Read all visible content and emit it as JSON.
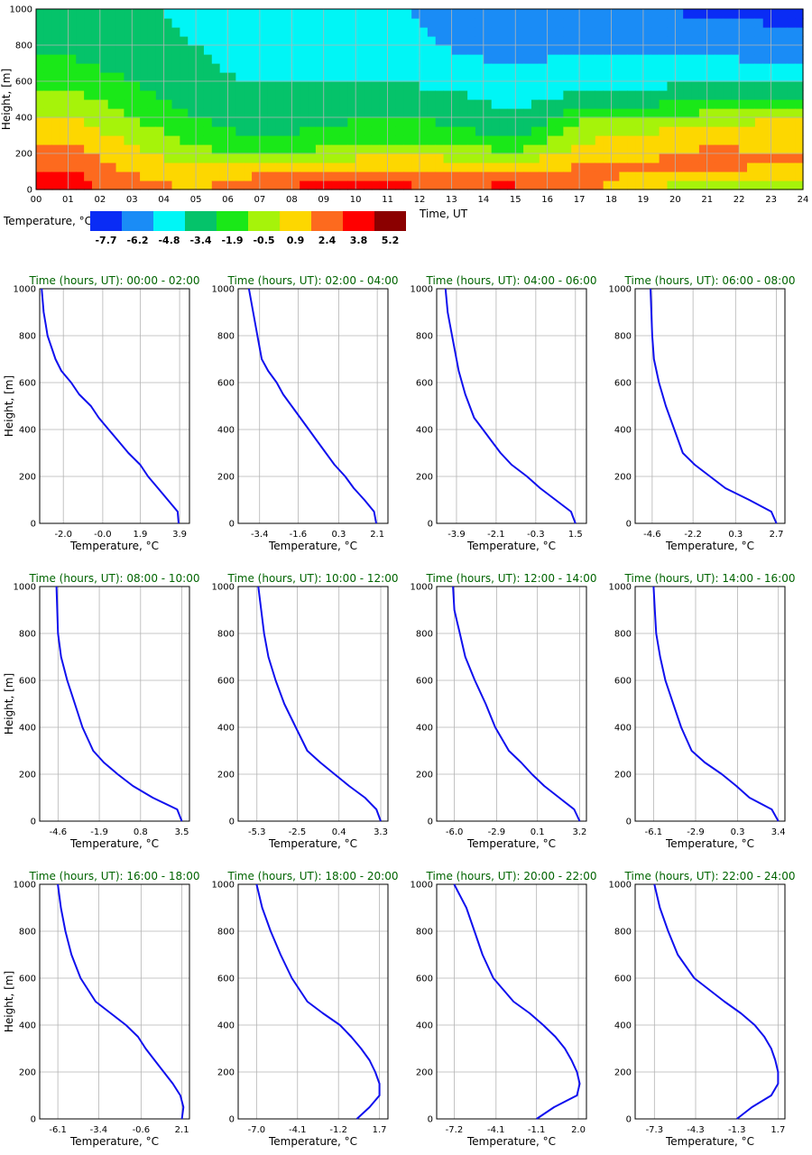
{
  "chart_data": [
    {
      "type": "heatmap",
      "xlabel": "Time, UT",
      "ylabel": "Height, [m]",
      "xlim": [
        0,
        24
      ],
      "ylim": [
        0,
        1000
      ],
      "x_ticks": [
        "00",
        "01",
        "02",
        "03",
        "04",
        "05",
        "06",
        "07",
        "08",
        "09",
        "10",
        "11",
        "12",
        "13",
        "14",
        "15",
        "16",
        "17",
        "18",
        "19",
        "20",
        "21",
        "22",
        "23",
        "24"
      ],
      "y_ticks": [
        0,
        200,
        400,
        600,
        800,
        1000
      ],
      "grid": true,
      "legend_title": "Temperature, °C",
      "legend_ticks": [
        "-7.7",
        "-6.2",
        "-4.8",
        "-3.4",
        "-1.9",
        "-0.5",
        "0.9",
        "2.4",
        "3.8",
        "5.2"
      ],
      "levels": [
        -8.4,
        -6.95,
        -5.5,
        -4.1,
        -2.65,
        -1.2,
        0.2,
        1.65,
        3.1,
        4.5,
        5.9
      ],
      "palette": [
        "#0a2cf5",
        "#1a8cf6",
        "#00f6f6",
        "#05c36a",
        "#1ae818",
        "#a6f30a",
        "#fdd700",
        "#fd6a1e",
        "#ff0000",
        "#8b0000"
      ],
      "profile_step_hours": 0.25,
      "profile_heights": [
        0,
        50,
        100,
        150,
        200,
        250,
        300,
        350,
        400,
        450,
        500,
        550,
        600,
        650,
        700,
        750,
        800,
        850,
        900,
        950,
        1000
      ]
    },
    {
      "type": "line",
      "title": "Time (hours, UT): 00:00 - 02:00",
      "xlabel": "Temperature, °C",
      "ylabel": "Height, [m]",
      "x_ticks": [
        "-2.0",
        "-0.0",
        "1.9",
        "3.9"
      ],
      "xlim": [
        -3.2,
        4.4
      ],
      "ylim": [
        0,
        1000
      ],
      "x": [
        3.85,
        3.8,
        3.3,
        2.8,
        2.3,
        1.9,
        1.3,
        0.8,
        0.3,
        -0.2,
        -0.6,
        -1.2,
        -1.6,
        -2.1,
        -2.4,
        -2.6,
        -2.8,
        -2.9,
        -3.0,
        -3.1
      ],
      "y": [
        0,
        50,
        100,
        150,
        200,
        250,
        300,
        350,
        400,
        450,
        500,
        550,
        600,
        650,
        700,
        750,
        800,
        850,
        900,
        1000
      ]
    },
    {
      "type": "line",
      "title": "Time (hours, UT): 02:00 - 04:00",
      "xlabel": "Temperature, °C",
      "ylabel": "Height, [m]",
      "x_ticks": [
        "-3.4",
        "-1.6",
        "0.3",
        "2.1"
      ],
      "xlim": [
        -4.4,
        2.6
      ],
      "ylim": [
        0,
        1000
      ],
      "x": [
        2.05,
        1.95,
        1.5,
        1.0,
        0.6,
        0.1,
        -0.3,
        -0.7,
        -1.1,
        -1.5,
        -1.9,
        -2.3,
        -2.6,
        -3.0,
        -3.3,
        -3.5,
        -3.7,
        -3.9
      ],
      "y": [
        0,
        50,
        100,
        150,
        200,
        250,
        300,
        350,
        400,
        450,
        500,
        550,
        600,
        650,
        700,
        800,
        900,
        1000
      ]
    },
    {
      "type": "line",
      "title": "Time (hours, UT): 04:00 - 06:00",
      "xlabel": "Temperature, °C",
      "ylabel": "Height, [m]",
      "x_ticks": [
        "-3.9",
        "-2.1",
        "-0.3",
        "1.5"
      ],
      "xlim": [
        -4.8,
        2.0
      ],
      "ylim": [
        0,
        1000
      ],
      "x": [
        1.5,
        1.3,
        0.6,
        -0.1,
        -0.7,
        -1.4,
        -1.9,
        -2.3,
        -2.7,
        -3.1,
        -3.5,
        -3.8,
        -4.0,
        -4.2,
        -4.3,
        -4.4
      ],
      "y": [
        0,
        50,
        100,
        150,
        200,
        250,
        300,
        350,
        400,
        450,
        550,
        650,
        750,
        850,
        900,
        1000
      ]
    },
    {
      "type": "line",
      "title": "Time (hours, UT): 06:00 - 08:00",
      "xlabel": "Temperature, °C",
      "ylabel": "Height, [m]",
      "x_ticks": [
        "-4.6",
        "-2.2",
        "0.3",
        "2.7"
      ],
      "xlim": [
        -5.6,
        3.2
      ],
      "ylim": [
        0,
        1000
      ],
      "x": [
        2.7,
        2.4,
        1.1,
        -0.3,
        -1.2,
        -2.1,
        -2.8,
        -3.3,
        -3.8,
        -4.2,
        -4.5,
        -4.6,
        -4.7
      ],
      "y": [
        0,
        50,
        100,
        150,
        200,
        250,
        300,
        400,
        500,
        600,
        700,
        800,
        1000
      ]
    },
    {
      "type": "line",
      "title": "Time (hours, UT): 08:00 - 10:00",
      "xlabel": "Temperature, °C",
      "ylabel": "Height, [m]",
      "x_ticks": [
        "-4.6",
        "-1.9",
        "0.8",
        "3.5"
      ],
      "xlim": [
        -5.8,
        4.0
      ],
      "ylim": [
        0,
        1000
      ],
      "x": [
        3.5,
        3.2,
        1.6,
        0.3,
        -0.7,
        -1.6,
        -2.3,
        -3.0,
        -3.5,
        -4.0,
        -4.4,
        -4.6,
        -4.7
      ],
      "y": [
        0,
        50,
        100,
        150,
        200,
        250,
        300,
        400,
        500,
        600,
        700,
        800,
        1000
      ]
    },
    {
      "type": "line",
      "title": "Time (hours, UT): 10:00 - 12:00",
      "xlabel": "Temperature, °C",
      "ylabel": "Height, [m]",
      "x_ticks": [
        "-5.3",
        "-2.5",
        "0.4",
        "3.3"
      ],
      "xlim": [
        -6.6,
        3.8
      ],
      "ylim": [
        0,
        1000
      ],
      "x": [
        3.3,
        3.0,
        2.2,
        1.1,
        0.1,
        -0.9,
        -1.8,
        -2.6,
        -3.4,
        -4.0,
        -4.5,
        -4.8,
        -5.0,
        -5.2
      ],
      "y": [
        0,
        50,
        100,
        150,
        200,
        250,
        300,
        400,
        500,
        600,
        700,
        800,
        900,
        1000
      ]
    },
    {
      "type": "line",
      "title": "Time (hours, UT): 12:00 - 14:00",
      "xlabel": "Temperature, °C",
      "ylabel": "Height, [m]",
      "x_ticks": [
        "-6.0",
        "-2.9",
        "0.1",
        "3.2"
      ],
      "xlim": [
        -7.3,
        3.7
      ],
      "ylim": [
        0,
        1000
      ],
      "x": [
        3.2,
        2.8,
        1.7,
        0.6,
        -0.3,
        -1.1,
        -2.0,
        -3.0,
        -3.7,
        -4.5,
        -5.2,
        -5.6,
        -5.8,
        -6.0,
        -6.1
      ],
      "y": [
        0,
        50,
        100,
        150,
        200,
        250,
        300,
        400,
        500,
        600,
        700,
        800,
        850,
        900,
        1000
      ]
    },
    {
      "type": "line",
      "title": "Time (hours, UT): 14:00 - 16:00",
      "xlabel": "Temperature, °C",
      "ylabel": "Height, [m]",
      "x_ticks": [
        "-6.1",
        "-2.9",
        "0.3",
        "3.4"
      ],
      "xlim": [
        -7.5,
        3.9
      ],
      "ylim": [
        0,
        1000
      ],
      "x": [
        3.4,
        2.9,
        1.2,
        0.2,
        -0.9,
        -2.2,
        -3.2,
        -4.0,
        -4.6,
        -5.2,
        -5.6,
        -5.9,
        -6.0,
        -6.1
      ],
      "y": [
        0,
        50,
        100,
        150,
        200,
        250,
        300,
        400,
        500,
        600,
        700,
        800,
        900,
        1000
      ]
    },
    {
      "type": "line",
      "title": "Time (hours, UT): 16:00 - 18:00",
      "xlabel": "Temperature, °C",
      "ylabel": "Height, [m]",
      "x_ticks": [
        "-6.1",
        "-3.4",
        "-0.6",
        "2.1"
      ],
      "xlim": [
        -7.3,
        2.6
      ],
      "ylim": [
        0,
        1000
      ],
      "x": [
        2.1,
        2.2,
        2.0,
        1.5,
        0.9,
        0.3,
        -0.3,
        -0.8,
        -1.6,
        -2.6,
        -3.6,
        -4.6,
        -5.2,
        -5.6,
        -5.9,
        -6.1
      ],
      "y": [
        0,
        50,
        100,
        150,
        200,
        250,
        300,
        350,
        400,
        450,
        500,
        600,
        700,
        800,
        900,
        1000
      ]
    },
    {
      "type": "line",
      "title": "Time (hours, UT): 18:00 - 20:00",
      "xlabel": "Temperature, °C",
      "ylabel": "Height, [m]",
      "x_ticks": [
        "-7.0",
        "-4.1",
        "-1.2",
        "1.7"
      ],
      "xlim": [
        -8.3,
        2.3
      ],
      "ylim": [
        0,
        1000
      ],
      "x": [
        0.1,
        1.0,
        1.7,
        1.7,
        1.4,
        1.0,
        0.4,
        -0.3,
        -1.1,
        -2.3,
        -3.4,
        -4.5,
        -5.3,
        -6.0,
        -6.6,
        -7.0
      ],
      "y": [
        0,
        50,
        100,
        150,
        200,
        250,
        300,
        350,
        400,
        450,
        500,
        600,
        700,
        800,
        900,
        1000
      ]
    },
    {
      "type": "line",
      "title": "Time (hours, UT): 20:00 - 22:00",
      "xlabel": "Temperature, °C",
      "ylabel": "Height, [m]",
      "x_ticks": [
        "-7.2",
        "-4.1",
        "-1.1",
        "2.0"
      ],
      "xlim": [
        -8.5,
        2.6
      ],
      "ylim": [
        0,
        1000
      ],
      "x": [
        -1.1,
        0.2,
        1.9,
        2.1,
        1.9,
        1.5,
        1.0,
        0.3,
        -0.6,
        -1.6,
        -2.8,
        -4.3,
        -5.1,
        -5.7,
        -6.3,
        -7.2
      ],
      "y": [
        0,
        50,
        100,
        150,
        200,
        250,
        300,
        350,
        400,
        450,
        500,
        600,
        700,
        800,
        900,
        1000
      ]
    },
    {
      "type": "line",
      "title": "Time (hours, UT): 22:00 - 24:00",
      "xlabel": "Temperature, °C",
      "ylabel": "Height, [m]",
      "x_ticks": [
        "-7.3",
        "-4.3",
        "-1.3",
        "1.7"
      ],
      "xlim": [
        -8.7,
        2.2
      ],
      "ylim": [
        0,
        1000
      ],
      "x": [
        -1.3,
        -0.2,
        1.2,
        1.7,
        1.7,
        1.5,
        1.2,
        0.7,
        0.0,
        -1.0,
        -2.2,
        -4.4,
        -5.6,
        -6.3,
        -6.9,
        -7.3
      ],
      "y": [
        0,
        50,
        100,
        150,
        200,
        250,
        300,
        350,
        400,
        450,
        500,
        600,
        700,
        800,
        900,
        1000
      ]
    }
  ]
}
